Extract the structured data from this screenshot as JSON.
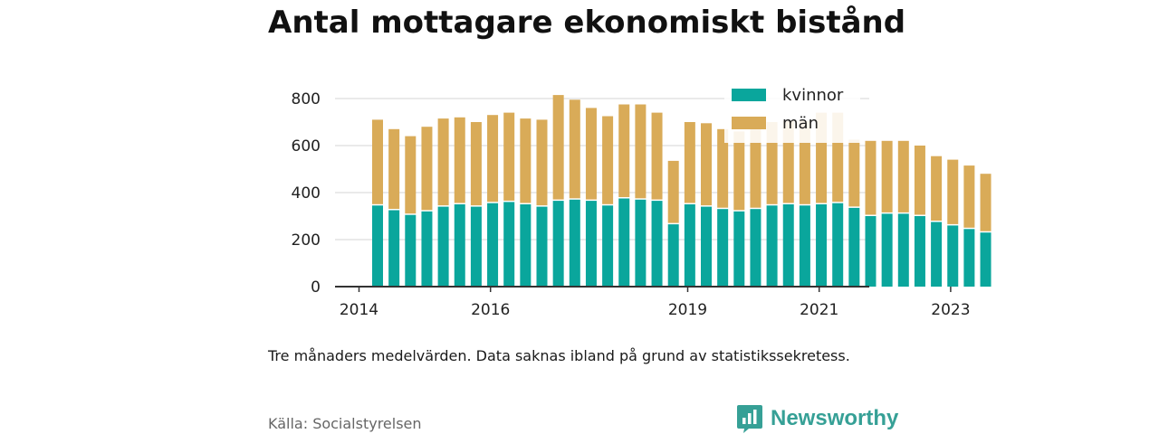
{
  "title": "Antal mottagare ekonomiskt bistånd",
  "note": "Tre månaders medelvärden. Data saknas ibland på grund av statistikssekretess.",
  "source": "Källa: Socialstyrelsen",
  "brand": {
    "name": "Newsworthy",
    "icon": "newsworthy-logo-icon",
    "color": "#36a096"
  },
  "chart_data": {
    "type": "bar",
    "stacked": true,
    "title": "Antal mottagare ekonomiskt bistånd",
    "xlabel": "",
    "ylabel": "",
    "ylim": [
      0,
      800
    ],
    "yticks": [
      0,
      200,
      400,
      600,
      800
    ],
    "grid": true,
    "legend_position": "top-right",
    "xtick_labels": [
      "2014",
      "2016",
      "2019",
      "2021",
      "2023"
    ],
    "xtick_index": [
      0,
      8,
      20,
      28,
      36
    ],
    "colors": {
      "kvinnor": "#0aa69c",
      "män": "#d9ab58"
    },
    "series": [
      {
        "name": "kvinnor",
        "values": [
          345,
          325,
          305,
          320,
          340,
          350,
          340,
          355,
          360,
          350,
          340,
          365,
          370,
          365,
          345,
          375,
          370,
          365,
          265,
          350,
          340,
          330,
          320,
          330,
          345,
          350,
          345,
          350,
          355,
          335,
          300,
          310,
          310,
          300,
          275,
          260,
          245,
          230
        ]
      },
      {
        "name": "män",
        "values": [
          365,
          345,
          335,
          360,
          375,
          370,
          360,
          375,
          380,
          365,
          370,
          450,
          425,
          395,
          380,
          400,
          405,
          375,
          270,
          350,
          355,
          340,
          340,
          345,
          355,
          355,
          360,
          390,
          385,
          290,
          320,
          310,
          310,
          300,
          280,
          280,
          270,
          250
        ]
      }
    ]
  }
}
